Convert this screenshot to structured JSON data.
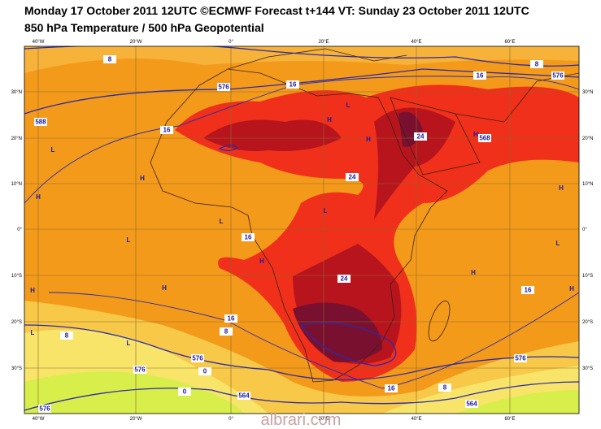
{
  "header": {
    "title": "Monday 17 October 2011 12UTC ©ECMWF Forecast t+144 VT: Sunday 23 October 2011 12UTC",
    "subtitle": "850 hPa Temperature / 500 hPa Geopotential"
  },
  "map": {
    "longitudes": [
      "40°W",
      "20°W",
      "0°",
      "20°E",
      "40°E",
      "60°E"
    ],
    "latitudes": [
      "30°N",
      "20°N",
      "10°N",
      "0°",
      "10°S",
      "20°S",
      "30°S"
    ],
    "pressure_centers": [
      "L",
      "H",
      "H",
      "L",
      "L",
      "H",
      "H",
      "H",
      "L",
      "L",
      "L",
      "H",
      "H",
      "H",
      "L",
      "H",
      "L",
      "H",
      "H"
    ],
    "contour_labels": [
      "8",
      "16",
      "8",
      "16",
      "576",
      "16",
      "24",
      "24",
      "568",
      "588",
      "576",
      "16",
      "24",
      "16",
      "16",
      "8",
      "8",
      "576",
      "576",
      "0",
      "0",
      "564",
      "16",
      "576",
      "8",
      "564",
      "576"
    ]
  },
  "watermark": "albrari.com"
}
